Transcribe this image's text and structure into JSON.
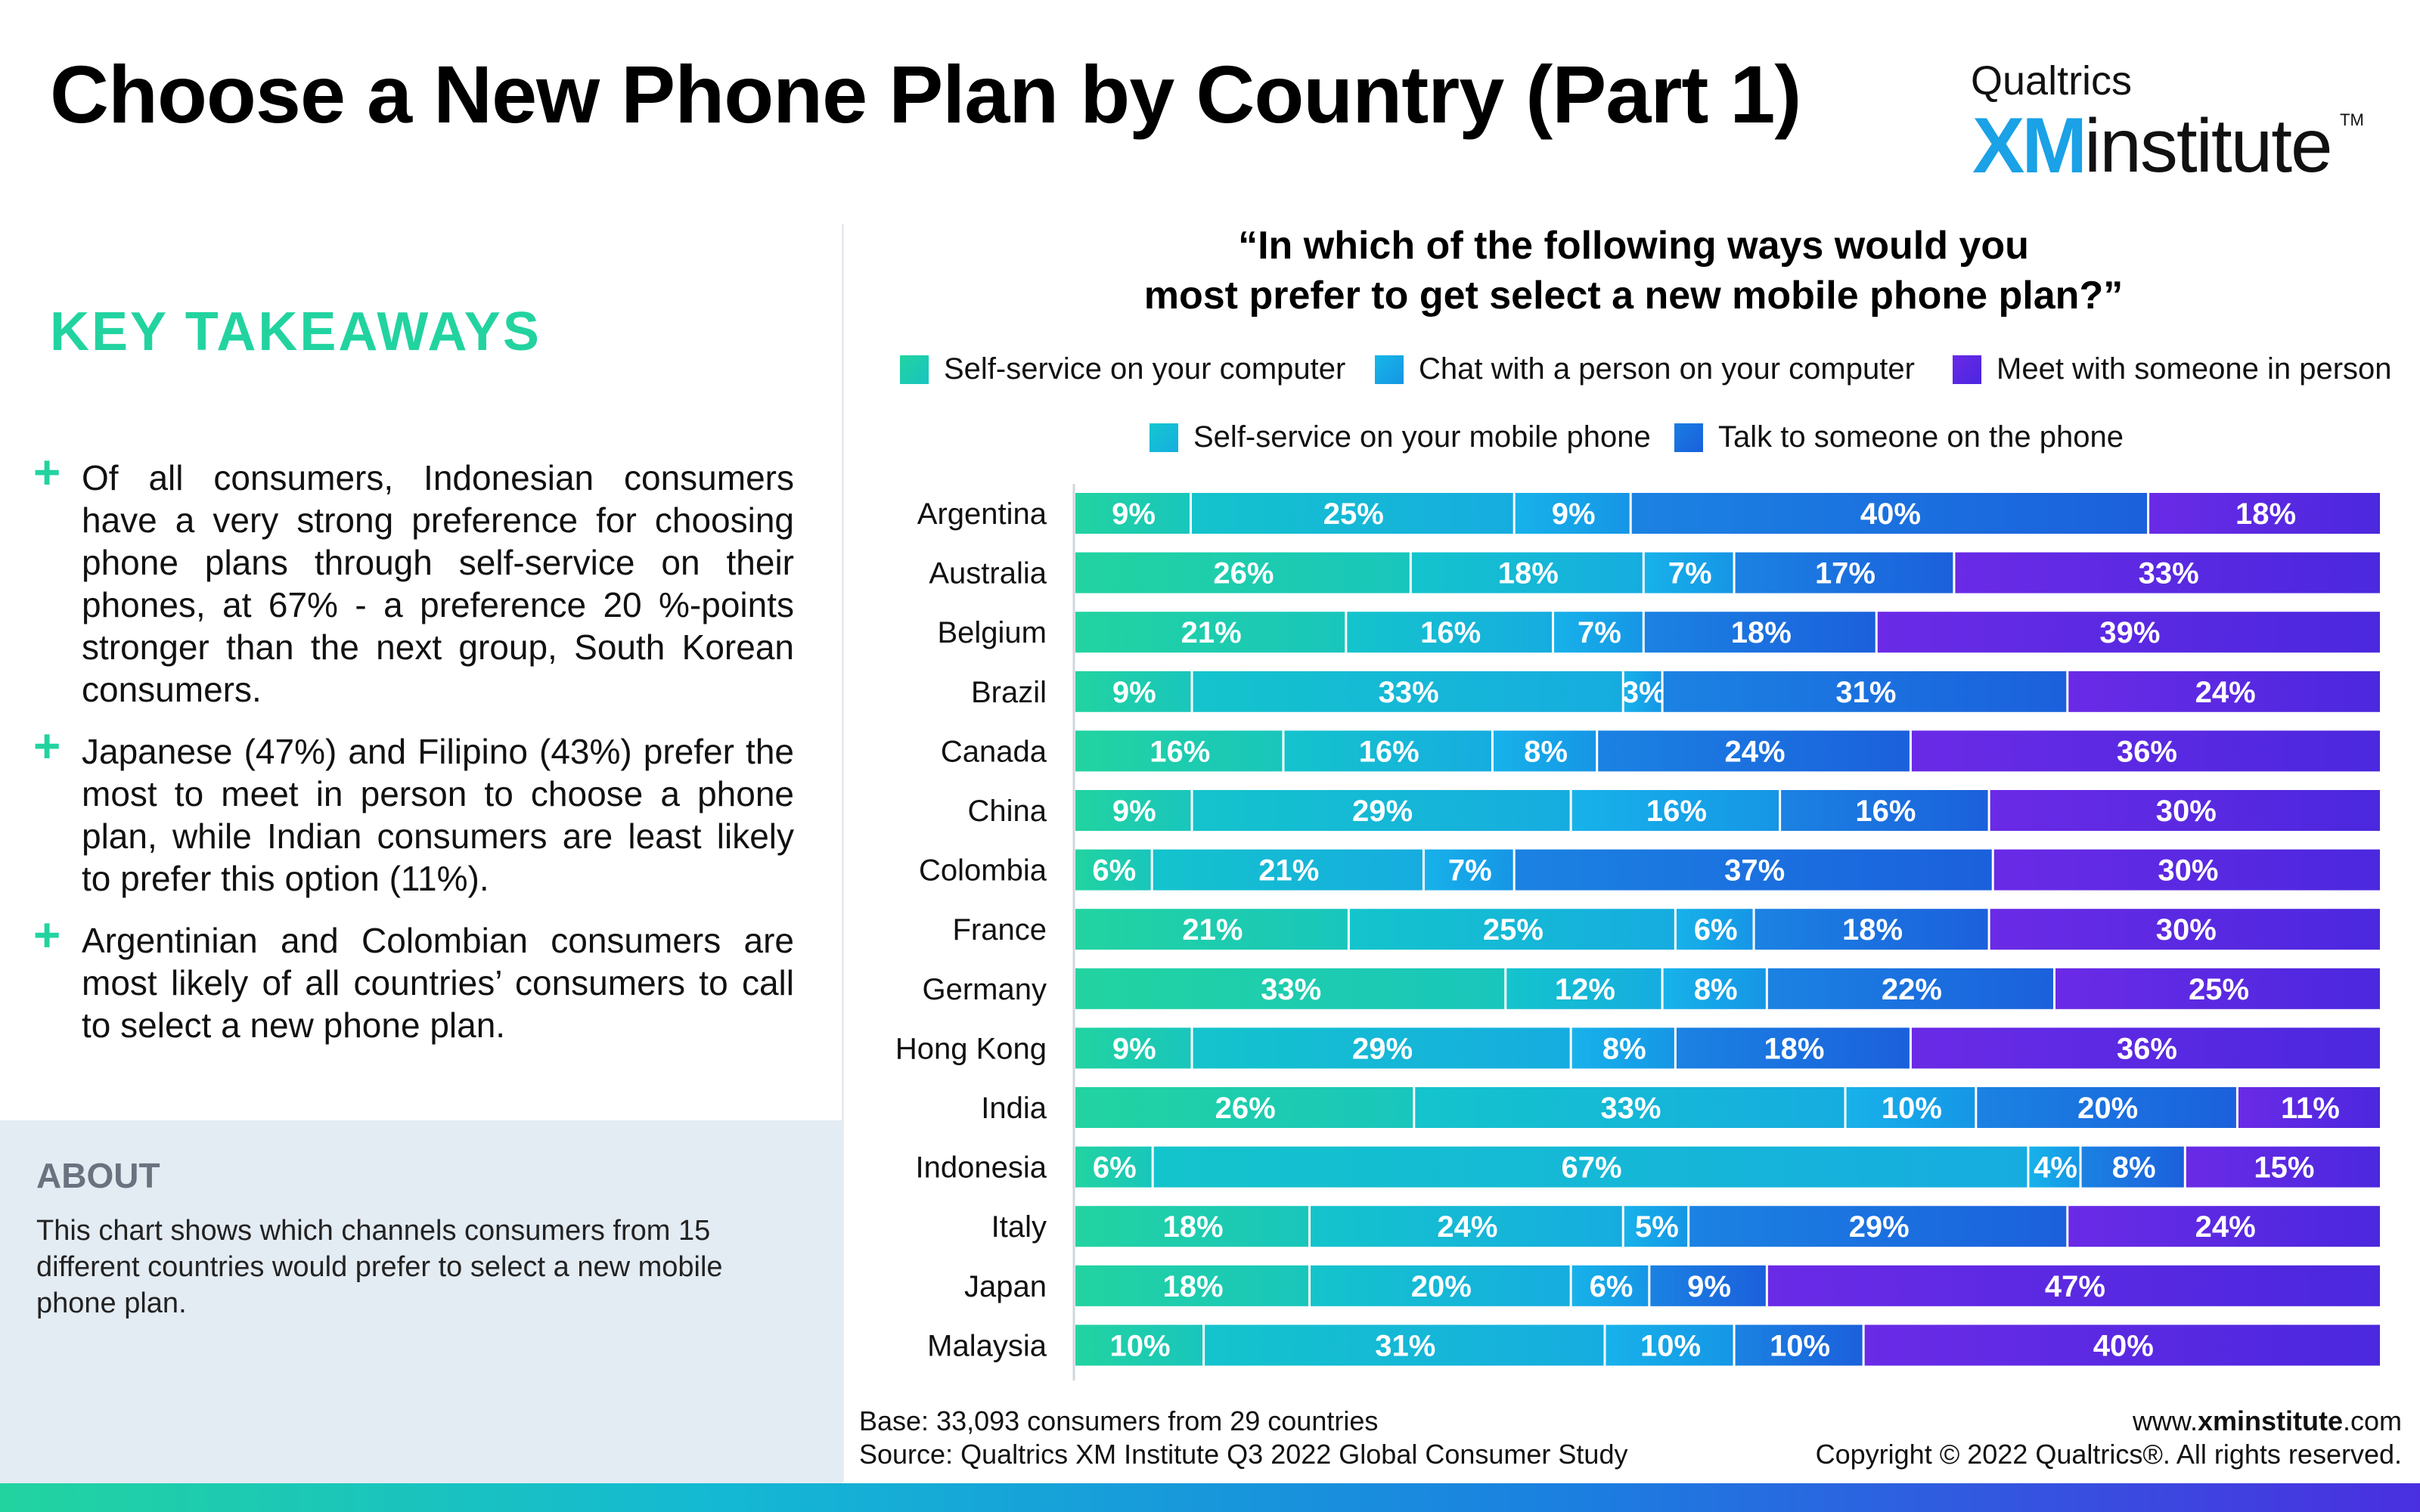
{
  "header": {
    "title": "Choose a New Phone Plan by Country (Part 1)",
    "logo": {
      "brand": "Qualtrics",
      "xm": "XM",
      "institute": "institute",
      "tm": "TM"
    }
  },
  "takeaways": {
    "title": "KEY TAKEAWAYS",
    "bullets": [
      "Of all consumers, Indonesian consumers have a very strong preference for choosing phone plans through self-service on their phones, at 67% - a preference 20 %-points stronger than the next group, South Korean consumers.",
      "Japanese (47%) and Filipino (43%) prefer the most to meet in person to choose a phone plan, while Indian consumers are least likely to prefer this option (11%).",
      "Argentinian and Colombian consumers are most likely of all countries’ consumers to call to select a new phone plan."
    ],
    "bullet_symbol": "+"
  },
  "about": {
    "title": "ABOUT",
    "text": "This chart shows which channels consumers from 15 different countries would prefer to select a new mobile phone plan."
  },
  "chart_data": {
    "type": "bar",
    "orientation": "horizontal",
    "stacked": true,
    "title_line1": "“In which of the following ways would you",
    "title_line2": "most prefer to get select a new mobile phone plan?”",
    "categories": [
      "Argentina",
      "Australia",
      "Belgium",
      "Brazil",
      "Canada",
      "China",
      "Colombia",
      "France",
      "Germany",
      "Hong Kong",
      "India",
      "Indonesia",
      "Italy",
      "Japan",
      "Malaysia"
    ],
    "series": [
      {
        "name": "Self-service on your computer",
        "color": "#22d3a0",
        "values": [
          9,
          26,
          21,
          9,
          16,
          9,
          6,
          21,
          33,
          9,
          26,
          6,
          18,
          18,
          10
        ]
      },
      {
        "name": "Self-service on your mobile phone",
        "color": "#14bfd4",
        "values": [
          25,
          18,
          16,
          33,
          16,
          29,
          21,
          25,
          12,
          29,
          33,
          67,
          24,
          20,
          31
        ]
      },
      {
        "name": "Chat with a person on your computer",
        "color": "#16a6ea",
        "values": [
          9,
          7,
          7,
          3,
          8,
          16,
          7,
          6,
          8,
          8,
          10,
          4,
          5,
          6,
          10
        ]
      },
      {
        "name": "Talk to someone on the phone",
        "color": "#1b6fe0",
        "values": [
          40,
          17,
          18,
          31,
          24,
          16,
          37,
          18,
          22,
          18,
          20,
          8,
          29,
          9,
          10
        ]
      },
      {
        "name": "Meet with someone in person",
        "color": "#5a25e6",
        "values": [
          18,
          33,
          39,
          24,
          36,
          30,
          30,
          30,
          25,
          36,
          11,
          15,
          24,
          47,
          40
        ]
      }
    ],
    "value_suffix": "%"
  },
  "legend": {
    "row1": [
      "Self-service on your computer",
      "Chat with a person on your computer",
      "Meet with someone in person"
    ],
    "row2": [
      "Self-service on your mobile phone",
      "Talk to someone on the phone"
    ]
  },
  "footer": {
    "base": "Base: 33,093 consumers from 29 countries",
    "source": "Source: Qualtrics XM Institute Q3 2022 Global Consumer Study",
    "url_prefix": "www.",
    "url_bold": "xminstitute",
    "url_suffix": ".com",
    "copyright": "Copyright © 2022 Qualtrics®. All rights reserved."
  },
  "colors": {
    "accent_green": "#22d3a0",
    "brand_blue": "#1aa1e6",
    "about_bg": "#e3ebf3"
  }
}
